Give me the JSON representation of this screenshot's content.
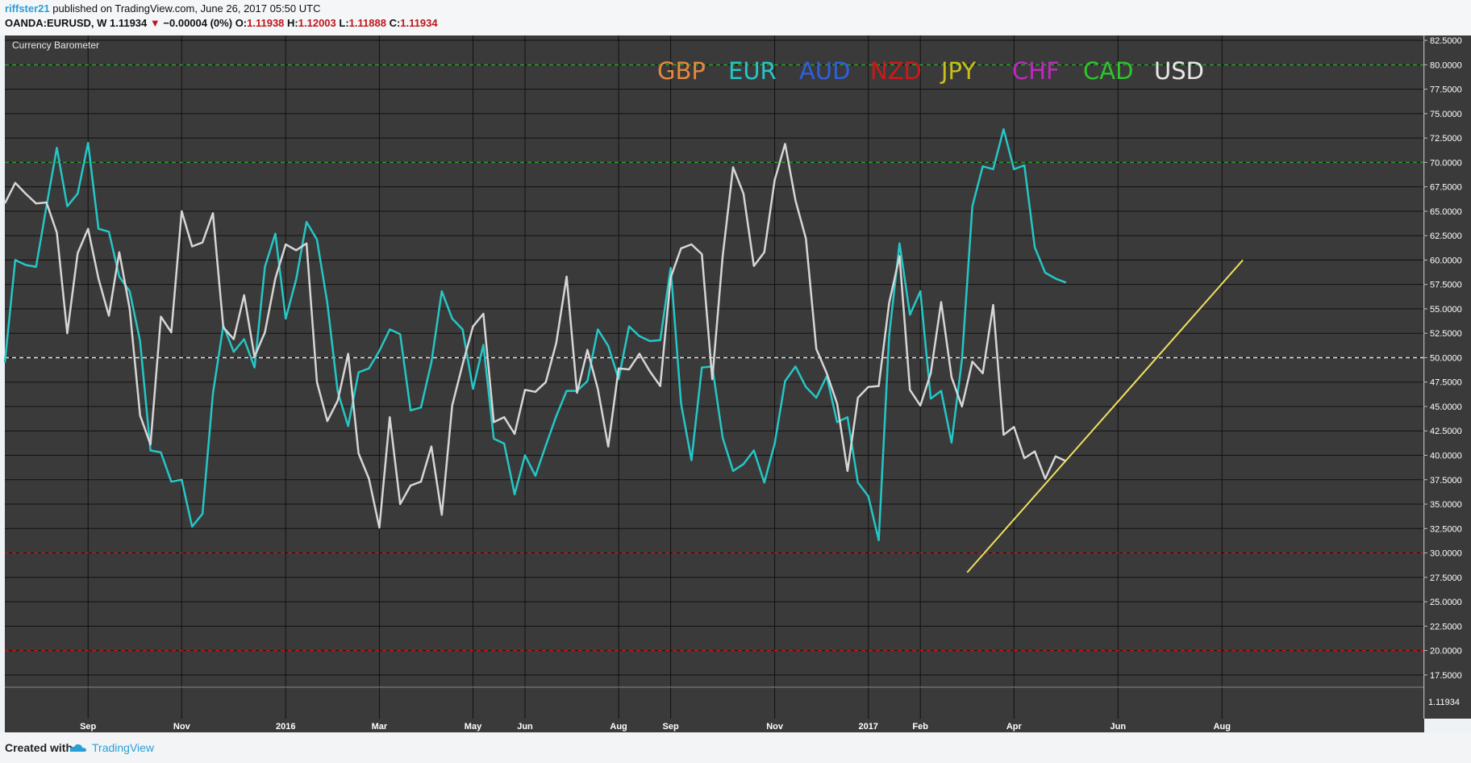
{
  "header": {
    "publisher": "riffster21",
    "published_text": "published on TradingView.com, June 26, 2017 05:50 UTC",
    "symbol_text": "OANDA:EURUSD, W  1.11934",
    "change_arrow": "▼",
    "change_text": "−0.00004 (0%)",
    "o_label": "O:",
    "o_value": "1.11938",
    "h_label": "H:",
    "h_value": "1.12003",
    "l_label": "L:",
    "l_value": "1.11888",
    "c_label": "C:",
    "c_value": "1.11934"
  },
  "indicator_title": "Currency Barometer",
  "sub_pane_price": "1.11934",
  "footer": {
    "created_with": "Created with",
    "brand": "TradingView"
  },
  "colors": {
    "bg": "#3a3a3a",
    "grid": "#111111",
    "eur": "#26c6c6",
    "usd": "#d6d6d6",
    "trend": "#f0e060",
    "level80": "#2a9e2a",
    "level70": "#2a9e2a",
    "level50": "#e0e0e0",
    "level30": "#a02020",
    "level20": "#d01010"
  },
  "chart_data": {
    "type": "line",
    "title": "Currency Barometer",
    "ylim": [
      16.25,
      83.0
    ],
    "y_ticks": [
      "82.5000",
      "80.0000",
      "77.5000",
      "75.0000",
      "72.5000",
      "70.0000",
      "67.5000",
      "65.0000",
      "62.5000",
      "60.0000",
      "57.5000",
      "55.0000",
      "52.5000",
      "50.0000",
      "47.5000",
      "45.0000",
      "42.5000",
      "40.0000",
      "37.5000",
      "35.0000",
      "32.5000",
      "30.0000",
      "27.5000",
      "25.0000",
      "22.5000",
      "20.0000",
      "17.5000"
    ],
    "x_ticks": [
      {
        "label": "Sep",
        "week": 8
      },
      {
        "label": "Nov",
        "week": 17
      },
      {
        "label": "2016",
        "week": 27
      },
      {
        "label": "Mar",
        "week": 36
      },
      {
        "label": "May",
        "week": 45
      },
      {
        "label": "Jun",
        "week": 50
      },
      {
        "label": "Aug",
        "week": 59
      },
      {
        "label": "Sep",
        "week": 64
      },
      {
        "label": "Nov",
        "week": 74
      },
      {
        "label": "2017",
        "week": 83
      },
      {
        "label": "Feb",
        "week": 88
      },
      {
        "label": "Apr",
        "week": 97
      },
      {
        "label": "Jun",
        "week": 107
      },
      {
        "label": "Aug",
        "week": 117
      }
    ],
    "legend": [
      {
        "label": "GBP",
        "color": "#e8883a"
      },
      {
        "label": "EUR",
        "color": "#26c6c6"
      },
      {
        "label": "AUD",
        "color": "#2f5fe0"
      },
      {
        "label": "NZD",
        "color": "#d01818"
      },
      {
        "label": "JPY",
        "color": "#c8c018"
      },
      {
        "label": "CHF",
        "color": "#c028c0"
      },
      {
        "label": "CAD",
        "color": "#2ec42e"
      },
      {
        "label": "USD",
        "color": "#e8e8e8"
      }
    ],
    "levels": [
      {
        "value": 80,
        "color": "#2a9e2a"
      },
      {
        "value": 70,
        "color": "#2a9e2a"
      },
      {
        "value": 50,
        "color": "#e0e0e0"
      },
      {
        "value": 30,
        "color": "#a02020"
      },
      {
        "value": 20,
        "color": "#d01010"
      }
    ],
    "series": [
      {
        "name": "EUR",
        "color": "#26c6c6",
        "values": [
          49.5,
          60,
          59.5,
          59.3,
          65.5,
          71.5,
          65.5,
          66.8,
          72,
          63.2,
          62.9,
          58.3,
          56.8,
          51.7,
          40.5,
          40.3,
          37.3,
          37.5,
          32.7,
          34,
          46.3,
          53.3,
          50.6,
          51.9,
          49,
          59.3,
          62.7,
          54,
          58,
          63.9,
          62.1,
          55.6,
          46.5,
          43,
          48.5,
          48.9,
          50.7,
          52.9,
          52.4,
          44.6,
          44.9,
          49.5,
          56.8,
          54,
          52.9,
          46.8,
          51.3,
          41.7,
          41.2,
          36,
          40,
          37.9,
          41,
          44,
          46.6,
          46.6,
          47.6,
          52.9,
          51.2,
          47.8,
          53.2,
          52.2,
          51.7,
          51.8,
          59.2,
          45.3,
          39.5,
          49,
          49.1,
          41.8,
          38.4,
          39.1,
          40.5,
          37.2,
          41.2,
          47.6,
          49.1,
          47,
          45.9,
          48.1,
          43.4,
          43.9,
          37.2,
          35.8,
          31.3,
          52.2,
          61.7,
          54.4,
          56.8,
          45.8,
          46.6,
          41.3,
          49.8,
          65.5,
          69.6,
          69.3,
          73.4,
          69.3,
          69.7,
          61.3,
          58.7,
          58.1,
          57.7
        ]
      },
      {
        "name": "USD",
        "color": "#d6d6d6",
        "values": [
          65.8,
          67.9,
          66.8,
          65.8,
          65.9,
          62.8,
          52.5,
          60.7,
          63.2,
          58.1,
          54.3,
          60.8,
          55,
          44.1,
          41.1,
          54.2,
          52.6,
          65,
          61.4,
          61.8,
          64.8,
          53.1,
          51.9,
          56.4,
          50.1,
          52.6,
          58.1,
          61.6,
          61,
          61.7,
          47.5,
          43.5,
          45.6,
          50.4,
          40.2,
          37.6,
          32.6,
          43.9,
          35,
          36.9,
          37.3,
          40.9,
          33.9,
          45.1,
          49.3,
          53.2,
          54.5,
          43.4,
          43.9,
          42.2,
          46.7,
          46.5,
          47.5,
          51.5,
          58.3,
          46.4,
          50.8,
          46.8,
          40.9,
          48.9,
          48.8,
          50.4,
          48.6,
          47.1,
          58.2,
          61.2,
          61.6,
          60.6,
          47.8,
          60.4,
          69.5,
          66.8,
          59.4,
          60.8,
          68.2,
          71.9,
          66.1,
          62.2,
          50.9,
          48.4,
          45.3,
          38.4,
          45.9,
          47,
          47.1,
          55.6,
          60.4,
          46.7,
          45.1,
          48.4,
          55.7,
          48,
          45,
          49.6,
          48.4,
          55.4,
          42.1,
          42.9,
          39.7,
          40.4,
          37.6,
          39.9,
          39.4
        ]
      }
    ],
    "trendline": {
      "color": "#f0e060",
      "start": {
        "week": 92.5,
        "value": 28
      },
      "end": {
        "week": 119,
        "value": 60
      }
    }
  }
}
